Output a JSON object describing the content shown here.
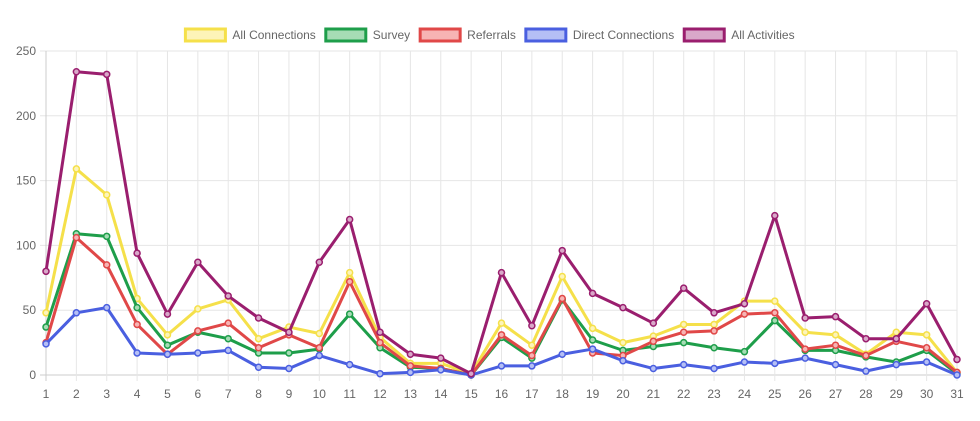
{
  "chart_data": {
    "type": "line",
    "title": "",
    "xlabel": "",
    "ylabel": "",
    "x": [
      "1",
      "2",
      "3",
      "4",
      "5",
      "6",
      "7",
      "8",
      "9",
      "10",
      "11",
      "12",
      "13",
      "14",
      "15",
      "16",
      "17",
      "18",
      "19",
      "20",
      "21",
      "22",
      "23",
      "24",
      "25",
      "26",
      "27",
      "28",
      "29",
      "30",
      "31"
    ],
    "ylim": [
      0,
      250
    ],
    "yticks": [
      0,
      50,
      100,
      150,
      200,
      250
    ],
    "grid": true,
    "legend_position": "top",
    "series": [
      {
        "name": "All Connections",
        "color": "#f5e04a",
        "fill": "#fdf4b8",
        "values": [
          48,
          159,
          139,
          59,
          31,
          51,
          58,
          28,
          37,
          32,
          79,
          29,
          9,
          9,
          1,
          40,
          23,
          76,
          36,
          25,
          30,
          39,
          39,
          57,
          57,
          33,
          31,
          16,
          33,
          31,
          2
        ]
      },
      {
        "name": "Survey",
        "color": "#1e9e4a",
        "fill": "#a6dcb5",
        "values": [
          37,
          109,
          107,
          52,
          23,
          33,
          28,
          17,
          17,
          20,
          47,
          21,
          6,
          5,
          0,
          29,
          13,
          58,
          27,
          19,
          22,
          25,
          21,
          18,
          42,
          19,
          19,
          14,
          10,
          19,
          1
        ]
      },
      {
        "name": "Referrals",
        "color": "#e04848",
        "fill": "#f7b4b4",
        "values": [
          25,
          106,
          85,
          39,
          16,
          34,
          40,
          21,
          31,
          21,
          72,
          25,
          7,
          5,
          0,
          31,
          15,
          59,
          17,
          15,
          26,
          33,
          34,
          47,
          48,
          20,
          23,
          15,
          26,
          21,
          2
        ]
      },
      {
        "name": "Direct Connections",
        "color": "#4a5fe0",
        "fill": "#b5bff5",
        "values": [
          24,
          48,
          52,
          17,
          16,
          17,
          19,
          6,
          5,
          15,
          8,
          1,
          2,
          4,
          0,
          7,
          7,
          16,
          20,
          11,
          5,
          8,
          5,
          10,
          9,
          13,
          8,
          3,
          8,
          10,
          0
        ]
      },
      {
        "name": "All Activities",
        "color": "#9a1e6e",
        "fill": "#d9a8c9",
        "values": [
          80,
          234,
          232,
          94,
          47,
          87,
          61,
          44,
          33,
          87,
          120,
          33,
          16,
          13,
          1,
          79,
          38,
          96,
          63,
          52,
          40,
          67,
          48,
          55,
          123,
          44,
          45,
          28,
          28,
          55,
          12
        ]
      }
    ]
  }
}
